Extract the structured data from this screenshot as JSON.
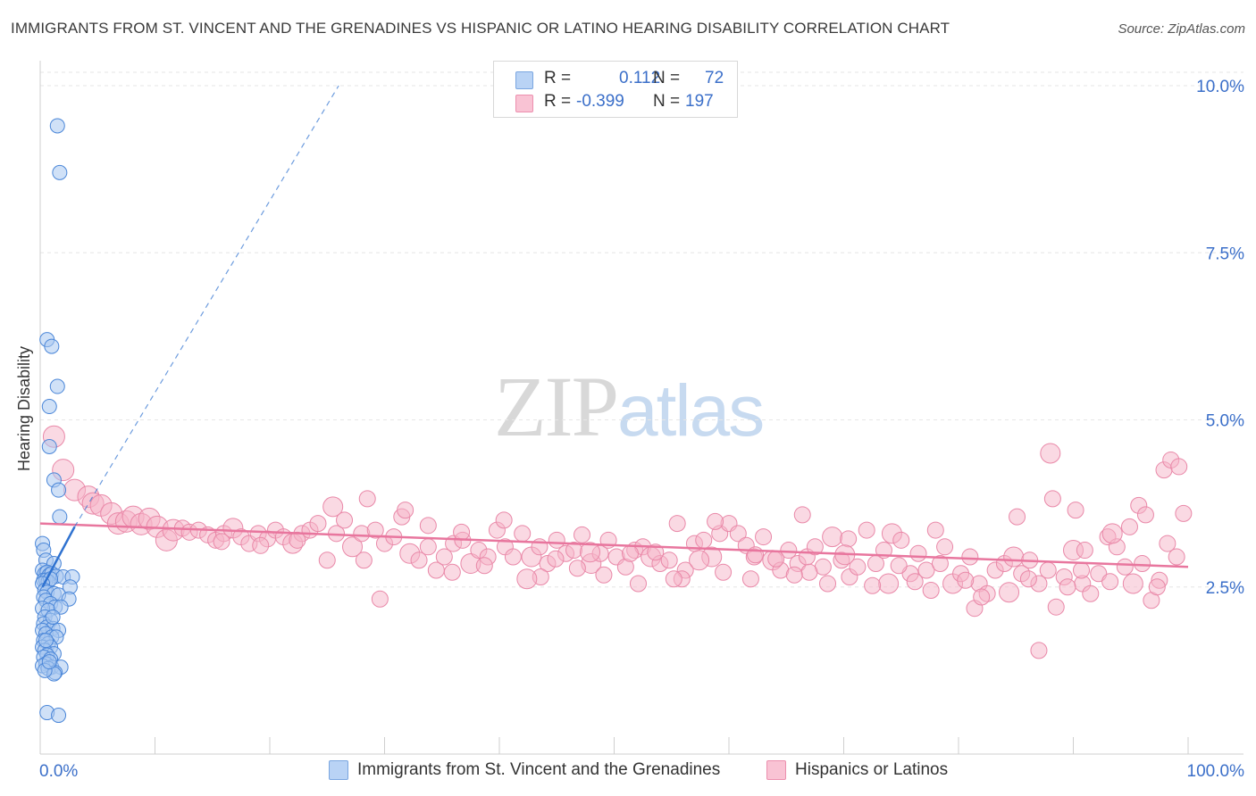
{
  "title": "IMMIGRANTS FROM ST. VINCENT AND THE GRENADINES VS HISPANIC OR LATINO HEARING DISABILITY CORRELATION CHART",
  "source": "Source: ZipAtlas.com",
  "watermark": {
    "zip": "ZIP",
    "atlas": "atlas"
  },
  "legend": {
    "blue": {
      "r_label": "R =",
      "r_value": "0.112",
      "n_label": "N =",
      "n_value": "72"
    },
    "pink": {
      "r_label": "R =",
      "r_value": "-0.399",
      "n_label": "N =",
      "n_value": "197"
    }
  },
  "bottom_legend": {
    "blue": "Immigrants from St. Vincent and the Grenadines",
    "pink": "Hispanics or Latinos"
  },
  "colors": {
    "blue_fill": "#a9c8f0",
    "blue_stroke": "#4a86d8",
    "blue_line": "#2f72d0",
    "pink_fill": "#f6b3c8",
    "pink_stroke": "#e988a8",
    "pink_line": "#e8769e",
    "axis_text": "#3b6fc9",
    "grid": "#e6e6e6"
  },
  "chart_data": {
    "type": "scatter",
    "title": "IMMIGRANTS FROM ST. VINCENT AND THE GRENADINES VS HISPANIC OR LATINO HEARING DISABILITY CORRELATION CHART",
    "xlabel": "",
    "ylabel": "Hearing Disability",
    "xlim": [
      0,
      100
    ],
    "ylim": [
      0,
      10.5
    ],
    "x_tick_labels": [
      "0.0%",
      "100.0%"
    ],
    "y_ticks": [
      2.5,
      5.0,
      7.5,
      10.0
    ],
    "y_tick_labels": [
      "2.5%",
      "5.0%",
      "7.5%",
      "10.0%"
    ],
    "grid": true,
    "legend_position": "top-center",
    "series": [
      {
        "name": "Immigrants from St. Vincent and the Grenadines",
        "r": 0.112,
        "n": 72,
        "trend_solid": [
          [
            0.2,
            2.5
          ],
          [
            3.0,
            3.4
          ]
        ],
        "trend_dashed": [
          [
            3.0,
            3.4
          ],
          [
            26,
            10.0
          ]
        ],
        "points": [
          [
            1.5,
            9.4
          ],
          [
            1.7,
            8.7
          ],
          [
            0.6,
            6.2
          ],
          [
            1.0,
            6.1
          ],
          [
            1.5,
            5.5
          ],
          [
            0.8,
            5.2
          ],
          [
            0.8,
            4.6
          ],
          [
            1.2,
            4.1
          ],
          [
            1.6,
            3.95
          ],
          [
            1.7,
            3.55
          ],
          [
            0.2,
            3.15
          ],
          [
            0.3,
            3.05
          ],
          [
            0.5,
            2.9
          ],
          [
            1.2,
            2.85
          ],
          [
            0.2,
            2.75
          ],
          [
            0.4,
            2.7
          ],
          [
            0.6,
            2.72
          ],
          [
            0.8,
            2.68
          ],
          [
            1.0,
            2.7
          ],
          [
            1.4,
            2.66
          ],
          [
            2.0,
            2.65
          ],
          [
            2.8,
            2.65
          ],
          [
            0.3,
            2.6
          ],
          [
            0.5,
            2.6
          ],
          [
            0.7,
            2.58
          ],
          [
            0.9,
            2.62
          ],
          [
            0.2,
            2.55
          ],
          [
            2.6,
            2.5
          ],
          [
            0.4,
            2.45
          ],
          [
            0.6,
            2.42
          ],
          [
            1.2,
            2.4
          ],
          [
            1.6,
            2.38
          ],
          [
            0.3,
            2.35
          ],
          [
            2.5,
            2.32
          ],
          [
            0.5,
            2.3
          ],
          [
            0.9,
            2.25
          ],
          [
            1.3,
            2.2
          ],
          [
            0.2,
            2.18
          ],
          [
            0.7,
            2.15
          ],
          [
            1.8,
            2.2
          ],
          [
            0.4,
            2.05
          ],
          [
            0.9,
            2.0
          ],
          [
            0.3,
            1.95
          ],
          [
            0.6,
            1.9
          ],
          [
            1.1,
            1.88
          ],
          [
            0.2,
            1.85
          ],
          [
            1.6,
            1.85
          ],
          [
            0.5,
            1.8
          ],
          [
            1.0,
            1.75
          ],
          [
            0.3,
            1.7
          ],
          [
            1.4,
            1.75
          ],
          [
            0.7,
            1.65
          ],
          [
            0.2,
            1.6
          ],
          [
            0.9,
            1.6
          ],
          [
            0.4,
            1.55
          ],
          [
            1.2,
            1.5
          ],
          [
            0.6,
            1.48
          ],
          [
            0.3,
            1.45
          ],
          [
            0.9,
            1.42
          ],
          [
            0.5,
            1.35
          ],
          [
            1.0,
            1.3
          ],
          [
            0.2,
            1.32
          ],
          [
            1.8,
            1.3
          ],
          [
            0.7,
            1.28
          ],
          [
            1.3,
            1.22
          ],
          [
            1.2,
            1.2
          ],
          [
            0.4,
            1.25
          ],
          [
            0.6,
            0.62
          ],
          [
            1.6,
            0.58
          ],
          [
            0.8,
            1.38
          ],
          [
            0.5,
            1.7
          ],
          [
            1.1,
            2.05
          ]
        ]
      },
      {
        "name": "Hispanics or Latinos",
        "r": -0.399,
        "n": 197,
        "trend_solid": [
          [
            0,
            3.45
          ],
          [
            100,
            2.8
          ]
        ],
        "points": [
          [
            1.2,
            4.75
          ],
          [
            2.0,
            4.25
          ],
          [
            3.0,
            3.95
          ],
          [
            4.2,
            3.85
          ],
          [
            4.6,
            3.75
          ],
          [
            5.3,
            3.72
          ],
          [
            6.2,
            3.6
          ],
          [
            6.8,
            3.45
          ],
          [
            7.5,
            3.48
          ],
          [
            8.1,
            3.55
          ],
          [
            8.8,
            3.44
          ],
          [
            9.5,
            3.52
          ],
          [
            10.2,
            3.4
          ],
          [
            11.0,
            3.2
          ],
          [
            11.6,
            3.35
          ],
          [
            12.4,
            3.38
          ],
          [
            13.0,
            3.32
          ],
          [
            13.8,
            3.35
          ],
          [
            14.6,
            3.28
          ],
          [
            15.3,
            3.2
          ],
          [
            16.0,
            3.3
          ],
          [
            16.8,
            3.38
          ],
          [
            17.5,
            3.25
          ],
          [
            18.2,
            3.15
          ],
          [
            19.0,
            3.3
          ],
          [
            19.8,
            3.22
          ],
          [
            20.5,
            3.35
          ],
          [
            21.2,
            3.25
          ],
          [
            22.0,
            3.15
          ],
          [
            22.8,
            3.3
          ],
          [
            23.5,
            3.35
          ],
          [
            24.2,
            3.45
          ],
          [
            25.0,
            2.9
          ],
          [
            25.8,
            3.3
          ],
          [
            26.5,
            3.5
          ],
          [
            27.2,
            3.1
          ],
          [
            28.0,
            3.3
          ],
          [
            28.5,
            3.82
          ],
          [
            29.2,
            3.35
          ],
          [
            30.0,
            3.15
          ],
          [
            30.8,
            3.25
          ],
          [
            31.5,
            3.55
          ],
          [
            32.2,
            3.0
          ],
          [
            33.0,
            2.9
          ],
          [
            33.8,
            3.1
          ],
          [
            34.5,
            2.75
          ],
          [
            35.2,
            2.95
          ],
          [
            36.0,
            3.15
          ],
          [
            36.8,
            3.2
          ],
          [
            37.5,
            2.85
          ],
          [
            38.2,
            3.05
          ],
          [
            39.0,
            2.95
          ],
          [
            39.8,
            3.35
          ],
          [
            40.5,
            3.1
          ],
          [
            41.2,
            2.95
          ],
          [
            42.0,
            3.3
          ],
          [
            42.8,
            2.95
          ],
          [
            43.5,
            3.1
          ],
          [
            44.2,
            2.85
          ],
          [
            45.0,
            3.2
          ],
          [
            45.8,
            3.0
          ],
          [
            46.5,
            3.05
          ],
          [
            47.2,
            3.28
          ],
          [
            48.0,
            2.85
          ],
          [
            48.8,
            3.0
          ],
          [
            49.5,
            3.2
          ],
          [
            50.2,
            2.95
          ],
          [
            51.0,
            2.8
          ],
          [
            51.8,
            3.05
          ],
          [
            52.5,
            3.1
          ],
          [
            53.2,
            2.95
          ],
          [
            54.0,
            2.85
          ],
          [
            54.8,
            2.9
          ],
          [
            55.5,
            3.45
          ],
          [
            56.2,
            2.75
          ],
          [
            57.0,
            3.15
          ],
          [
            57.8,
            3.2
          ],
          [
            58.5,
            2.95
          ],
          [
            59.2,
            3.3
          ],
          [
            60.0,
            3.45
          ],
          [
            60.8,
            3.3
          ],
          [
            61.5,
            3.12
          ],
          [
            62.2,
            2.95
          ],
          [
            63.0,
            3.25
          ],
          [
            63.8,
            2.9
          ],
          [
            64.5,
            2.75
          ],
          [
            65.2,
            3.05
          ],
          [
            66.0,
            2.85
          ],
          [
            66.8,
            2.95
          ],
          [
            67.5,
            3.1
          ],
          [
            68.2,
            2.8
          ],
          [
            69.0,
            3.25
          ],
          [
            69.8,
            2.9
          ],
          [
            70.5,
            2.65
          ],
          [
            71.2,
            2.8
          ],
          [
            72.0,
            3.35
          ],
          [
            72.8,
            2.85
          ],
          [
            73.5,
            3.05
          ],
          [
            74.2,
            3.3
          ],
          [
            75.0,
            3.2
          ],
          [
            75.8,
            2.7
          ],
          [
            76.5,
            3.0
          ],
          [
            77.2,
            2.75
          ],
          [
            78.0,
            3.35
          ],
          [
            78.8,
            3.1
          ],
          [
            79.5,
            2.55
          ],
          [
            80.2,
            2.7
          ],
          [
            81.0,
            2.95
          ],
          [
            81.8,
            2.55
          ],
          [
            82.5,
            2.4
          ],
          [
            83.2,
            2.75
          ],
          [
            84.0,
            2.85
          ],
          [
            84.8,
            2.95
          ],
          [
            85.5,
            2.7
          ],
          [
            86.2,
            2.9
          ],
          [
            87.0,
            2.55
          ],
          [
            87.8,
            2.75
          ],
          [
            88.5,
            2.2
          ],
          [
            89.2,
            2.65
          ],
          [
            90.0,
            3.05
          ],
          [
            90.8,
            2.55
          ],
          [
            91.5,
            2.4
          ],
          [
            92.2,
            2.7
          ],
          [
            93.0,
            3.25
          ],
          [
            93.8,
            3.1
          ],
          [
            94.5,
            2.8
          ],
          [
            95.2,
            2.55
          ],
          [
            96.0,
            2.85
          ],
          [
            96.8,
            2.3
          ],
          [
            97.5,
            2.6
          ],
          [
            98.2,
            3.15
          ],
          [
            99.0,
            2.95
          ],
          [
            99.6,
            3.6
          ],
          [
            25.5,
            3.7
          ],
          [
            28.2,
            2.9
          ],
          [
            31.8,
            3.65
          ],
          [
            33.8,
            3.42
          ],
          [
            36.7,
            3.32
          ],
          [
            40.4,
            3.5
          ],
          [
            43.6,
            2.65
          ],
          [
            47.9,
            3.02
          ],
          [
            52.1,
            2.55
          ],
          [
            55.9,
            2.62
          ],
          [
            58.8,
            3.48
          ],
          [
            62.3,
            2.98
          ],
          [
            66.4,
            3.58
          ],
          [
            70.4,
            3.22
          ],
          [
            73.9,
            2.55
          ],
          [
            77.6,
            2.45
          ],
          [
            81.4,
            2.18
          ],
          [
            85.1,
            3.55
          ],
          [
            88.2,
            3.82
          ],
          [
            90.2,
            3.65
          ],
          [
            91.0,
            3.05
          ],
          [
            93.4,
            3.3
          ],
          [
            94.9,
            3.4
          ],
          [
            95.7,
            3.72
          ],
          [
            96.3,
            3.58
          ],
          [
            97.9,
            4.25
          ],
          [
            98.5,
            4.4
          ],
          [
            99.2,
            4.3
          ],
          [
            88.0,
            4.5
          ],
          [
            87.0,
            1.55
          ],
          [
            97.3,
            2.5
          ],
          [
            93.2,
            2.58
          ],
          [
            90.7,
            2.75
          ],
          [
            89.5,
            2.5
          ],
          [
            86.1,
            2.62
          ],
          [
            84.4,
            2.42
          ],
          [
            82.0,
            2.35
          ],
          [
            80.6,
            2.6
          ],
          [
            78.4,
            2.85
          ],
          [
            76.2,
            2.58
          ],
          [
            74.8,
            2.82
          ],
          [
            72.5,
            2.52
          ],
          [
            70.1,
            2.98
          ],
          [
            68.6,
            2.55
          ],
          [
            67.0,
            2.72
          ],
          [
            65.7,
            2.68
          ],
          [
            64.1,
            2.92
          ],
          [
            61.9,
            2.62
          ],
          [
            59.5,
            2.72
          ],
          [
            57.4,
            2.9
          ],
          [
            55.2,
            2.62
          ],
          [
            53.6,
            3.02
          ],
          [
            51.4,
            3.0
          ],
          [
            49.1,
            2.68
          ],
          [
            46.8,
            2.78
          ],
          [
            44.9,
            2.92
          ],
          [
            42.4,
            2.62
          ],
          [
            38.7,
            2.82
          ],
          [
            35.9,
            2.72
          ],
          [
            29.6,
            2.32
          ],
          [
            22.4,
            3.2
          ],
          [
            19.2,
            3.12
          ],
          [
            15.8,
            3.18
          ]
        ]
      }
    ]
  }
}
